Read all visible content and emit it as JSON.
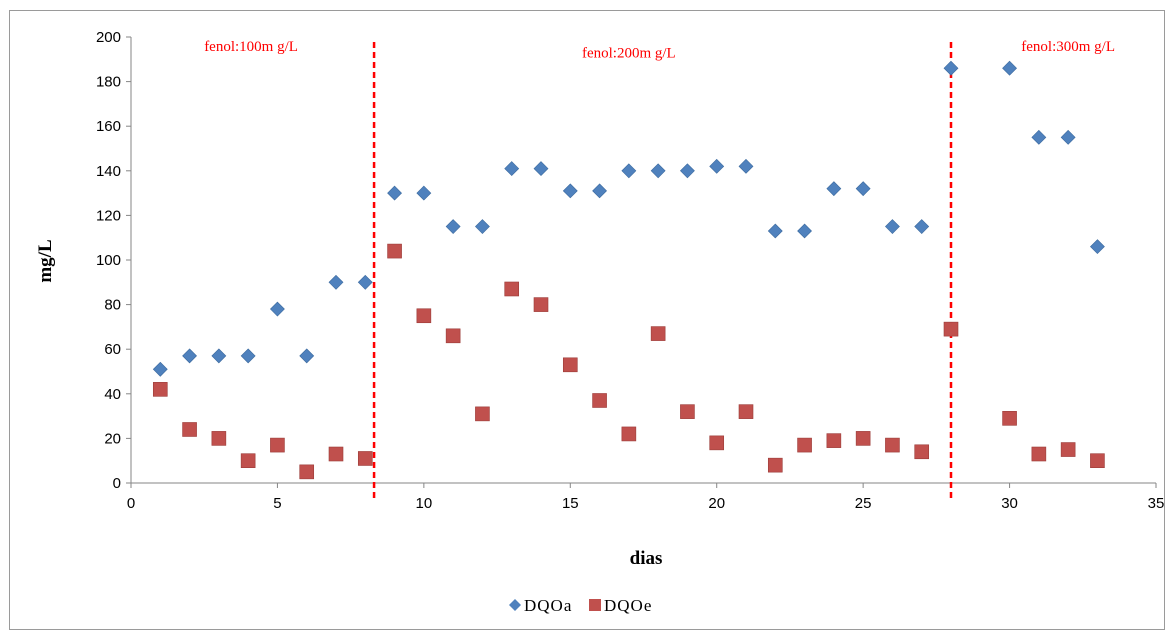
{
  "chart_data": {
    "type": "scatter",
    "title": "",
    "xlabel": "dias",
    "ylabel": "mg/L",
    "xlim": [
      0,
      35
    ],
    "ylim": [
      0,
      200
    ],
    "x_ticks": [
      0,
      5,
      10,
      15,
      20,
      25,
      30,
      35
    ],
    "y_ticks": [
      0,
      20,
      40,
      60,
      80,
      100,
      120,
      140,
      160,
      180,
      200
    ],
    "grid": false,
    "legend_position": "bottom",
    "series": [
      {
        "name": "DQOa",
        "marker": "diamond",
        "color": "#4f81bd",
        "points": [
          [
            1,
            51
          ],
          [
            2,
            57
          ],
          [
            3,
            57
          ],
          [
            4,
            57
          ],
          [
            5,
            78
          ],
          [
            6,
            57
          ],
          [
            7,
            90
          ],
          [
            8,
            90
          ],
          [
            9,
            130
          ],
          [
            10,
            130
          ],
          [
            11,
            115
          ],
          [
            12,
            115
          ],
          [
            13,
            141
          ],
          [
            14,
            141
          ],
          [
            15,
            131
          ],
          [
            16,
            131
          ],
          [
            17,
            140
          ],
          [
            18,
            140
          ],
          [
            19,
            140
          ],
          [
            20,
            142
          ],
          [
            21,
            142
          ],
          [
            22,
            113
          ],
          [
            23,
            113
          ],
          [
            24,
            132
          ],
          [
            25,
            132
          ],
          [
            26,
            115
          ],
          [
            27,
            115
          ],
          [
            28,
            186
          ],
          [
            30,
            186
          ],
          [
            31,
            155
          ],
          [
            32,
            155
          ],
          [
            33,
            106
          ]
        ]
      },
      {
        "name": "DQOe",
        "marker": "square",
        "color": "#c0504d",
        "points": [
          [
            1,
            42
          ],
          [
            2,
            24
          ],
          [
            3,
            20
          ],
          [
            4,
            10
          ],
          [
            5,
            17
          ],
          [
            6,
            5
          ],
          [
            7,
            13
          ],
          [
            8,
            11
          ],
          [
            9,
            104
          ],
          [
            10,
            75
          ],
          [
            11,
            66
          ],
          [
            12,
            31
          ],
          [
            13,
            87
          ],
          [
            14,
            80
          ],
          [
            15,
            53
          ],
          [
            16,
            37
          ],
          [
            17,
            22
          ],
          [
            18,
            67
          ],
          [
            19,
            32
          ],
          [
            20,
            18
          ],
          [
            21,
            32
          ],
          [
            22,
            8
          ],
          [
            23,
            17
          ],
          [
            24,
            19
          ],
          [
            25,
            20
          ],
          [
            26,
            17
          ],
          [
            27,
            14
          ],
          [
            28,
            69
          ],
          [
            30,
            29
          ],
          [
            31,
            13
          ],
          [
            32,
            15
          ],
          [
            33,
            10
          ]
        ]
      }
    ],
    "phase_lines": [
      {
        "x": 8.3,
        "color": "#ff0000",
        "style": "dashed"
      },
      {
        "x": 28.0,
        "color": "#ff0000",
        "style": "dashed"
      }
    ],
    "annotations": [
      {
        "text": "fenol:100m g/L",
        "x": 4.1,
        "y": 196,
        "color": "#ff0000"
      },
      {
        "text": "fenol:200m g/L",
        "x": 17.0,
        "y": 193,
        "color": "#ff0000"
      },
      {
        "text": "fenol:300m g/L",
        "x": 32.0,
        "y": 196,
        "color": "#ff0000"
      }
    ]
  }
}
